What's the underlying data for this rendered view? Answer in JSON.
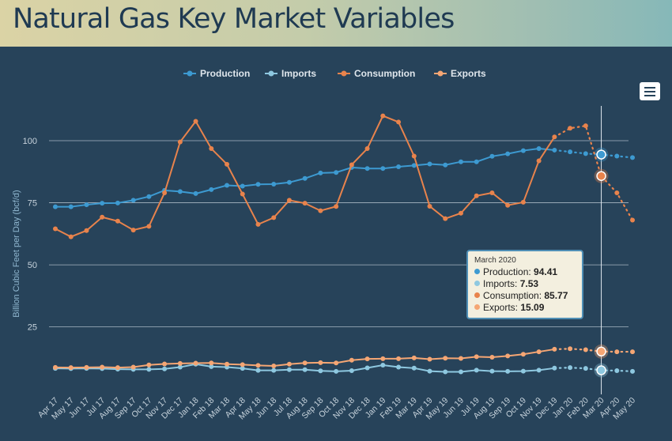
{
  "header": {
    "title": "Natural Gas Key Market Variables"
  },
  "menu": {
    "icon": "hamburger-menu-icon"
  },
  "colors": {
    "background": "#27435a",
    "production": "#3d9ad1",
    "imports": "#8ec8e0",
    "consumption": "#e8834c",
    "exports": "#f5a674"
  },
  "chart_data": {
    "type": "line",
    "title": "",
    "ylabel": "Billion Cubic Feet per Day (bcf/d)",
    "xlabel": "",
    "ylim": [
      0,
      115
    ],
    "yticks": [
      25,
      50,
      75,
      100
    ],
    "grid": true,
    "legend_position": "top-center",
    "categories": [
      "Apr 17",
      "May 17",
      "Jun 17",
      "Jul 17",
      "Aug 17",
      "Sep 17",
      "Oct 17",
      "Nov 17",
      "Dec 17",
      "Jan 18",
      "Feb 18",
      "Mar 18",
      "Apr 18",
      "May 18",
      "Jun 18",
      "Jul 18",
      "Aug 18",
      "Sep 18",
      "Oct 18",
      "Nov 18",
      "Dec 18",
      "Jan 19",
      "Feb 19",
      "Mar 19",
      "Apr 19",
      "May 19",
      "Jun 19",
      "Jul 19",
      "Aug 19",
      "Sep 19",
      "Oct 19",
      "Nov 19",
      "Dec 19",
      "Jan 20",
      "Feb 20",
      "Mar 20",
      "Apr 20",
      "May 20"
    ],
    "forecast_start_index": 33,
    "highlight_index": 35,
    "series": [
      {
        "name": "Production",
        "color": "#3d9ad1",
        "values": [
          73.4,
          73.4,
          74.2,
          74.8,
          74.9,
          76.0,
          77.5,
          80.0,
          79.5,
          78.7,
          80.3,
          82.0,
          81.7,
          82.4,
          82.5,
          83.2,
          84.8,
          87.0,
          87.2,
          89.2,
          88.8,
          88.8,
          89.5,
          90.0,
          90.6,
          90.2,
          91.5,
          91.5,
          93.7,
          94.7,
          96.0,
          96.8,
          96.2,
          95.5,
          94.8,
          94.41,
          93.8,
          93.2
        ]
      },
      {
        "name": "Imports",
        "color": "#8ec8e0",
        "values": [
          8.3,
          8.2,
          8.3,
          8.2,
          8.0,
          7.9,
          7.9,
          8.1,
          8.8,
          10.0,
          9.0,
          8.8,
          8.3,
          7.5,
          7.5,
          7.8,
          7.8,
          7.3,
          7.1,
          7.4,
          8.5,
          9.6,
          8.8,
          8.4,
          7.2,
          6.9,
          6.9,
          7.6,
          7.2,
          7.1,
          7.2,
          7.6,
          8.4,
          8.6,
          8.3,
          7.53,
          7.4,
          7.1
        ]
      },
      {
        "name": "Consumption",
        "color": "#e8834c",
        "values": [
          64.5,
          61.3,
          63.8,
          69.2,
          67.6,
          64.0,
          65.5,
          79.0,
          99.5,
          107.8,
          96.8,
          90.5,
          78.5,
          66.3,
          69.0,
          76.0,
          74.8,
          71.8,
          73.5,
          90.3,
          96.8,
          110.0,
          107.5,
          93.8,
          73.6,
          68.6,
          70.8,
          77.8,
          79.0,
          74.0,
          75.2,
          91.9,
          101.5,
          105.0,
          106.0,
          85.77,
          79.0,
          68.0
        ]
      },
      {
        "name": "Exports",
        "color": "#f5a674",
        "values": [
          8.7,
          8.6,
          8.7,
          8.8,
          8.6,
          8.8,
          9.7,
          10.1,
          10.3,
          10.4,
          10.5,
          10.0,
          9.8,
          9.5,
          9.3,
          10.0,
          10.5,
          10.6,
          10.5,
          11.6,
          12.1,
          12.2,
          12.2,
          12.5,
          12.0,
          12.4,
          12.3,
          13.0,
          12.8,
          13.3,
          14.0,
          15.0,
          16.0,
          16.2,
          15.8,
          15.09,
          15.0,
          15.0
        ]
      }
    ]
  },
  "tooltip": {
    "title": "March 2020",
    "rows": [
      {
        "label": "Production: ",
        "value": "94.41",
        "color": "#3d9ad1"
      },
      {
        "label": "Imports: ",
        "value": "7.53",
        "color": "#8ec8e0"
      },
      {
        "label": "Consumption: ",
        "value": "85.77",
        "color": "#e8834c"
      },
      {
        "label": "Exports: ",
        "value": "15.09",
        "color": "#f5a674"
      }
    ]
  }
}
